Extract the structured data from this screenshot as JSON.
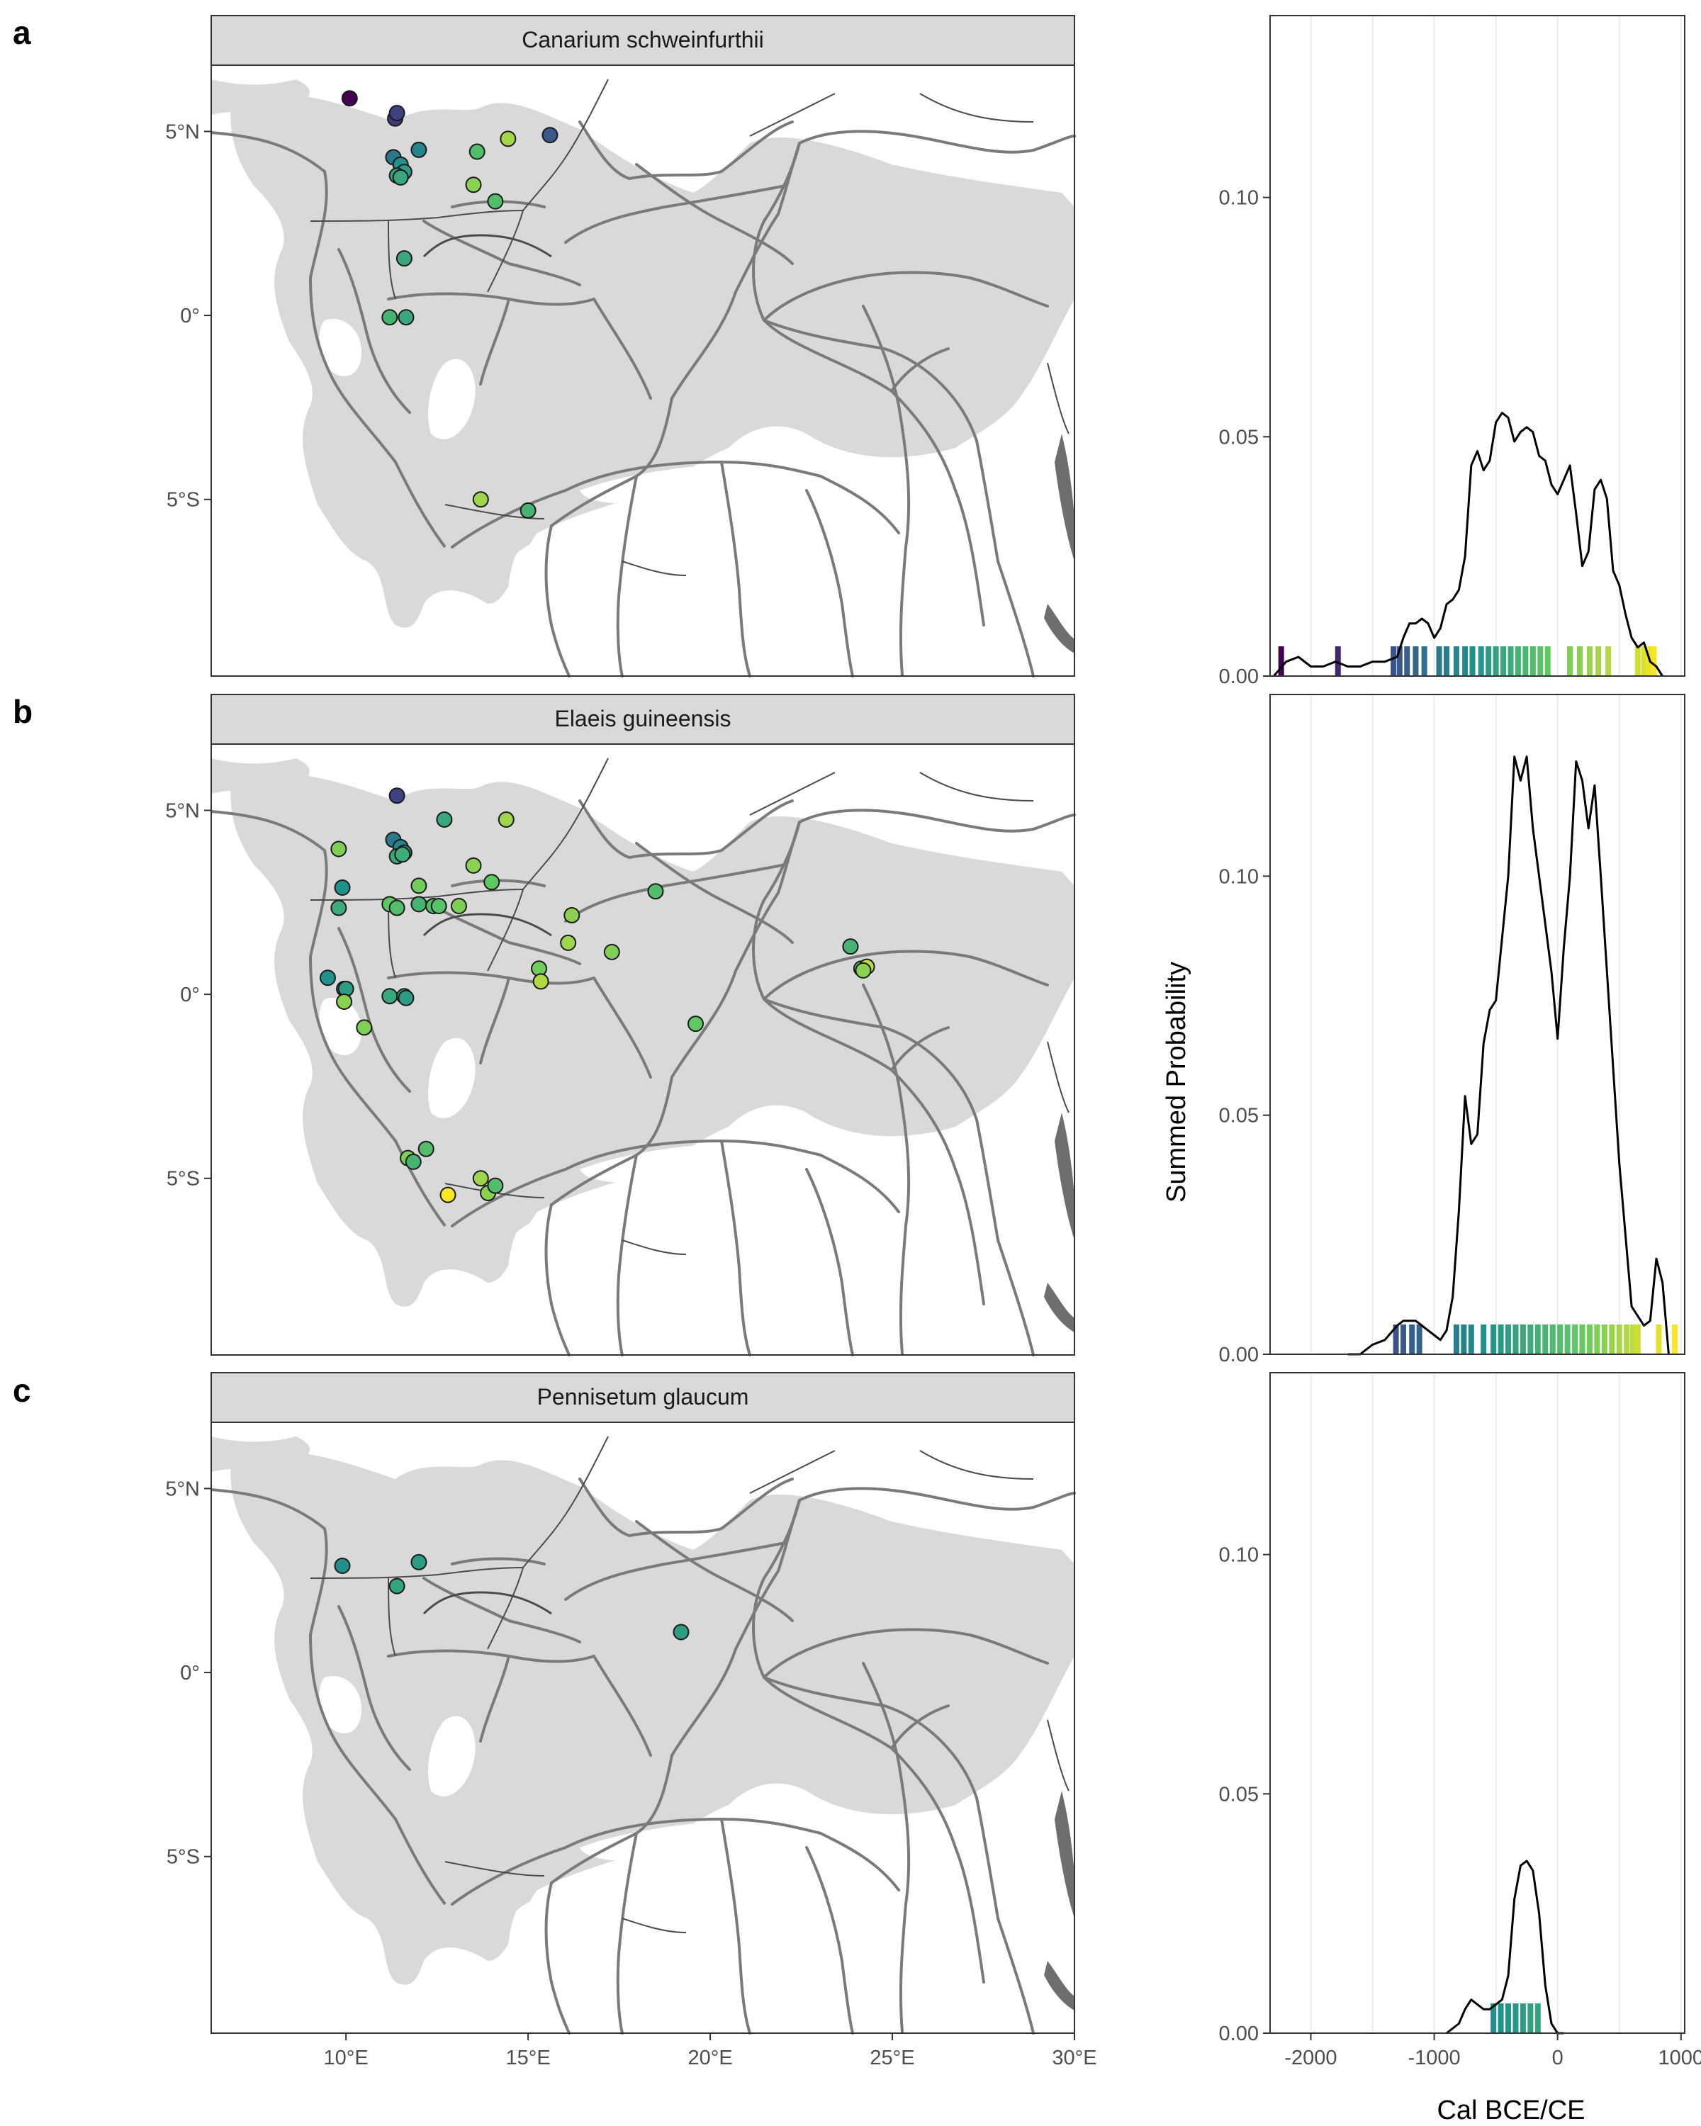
{
  "figure": {
    "colors": {
      "land_shade": "#d9d9d9",
      "river": "#7a7a7a",
      "border": "#4a4a4a",
      "strip_fill": "#d9d9d9",
      "density_line": "#000000",
      "viridis": [
        "#440154",
        "#3b528b",
        "#21918c",
        "#5ec962",
        "#fde725"
      ]
    },
    "panels": [
      {
        "letter": "a",
        "species": "Canarium schweinfurthii",
        "sites": [
          {
            "lon": 10.1,
            "lat": 5.9,
            "c": 0.0
          },
          {
            "lon": 11.35,
            "lat": 5.35,
            "c": 0.18
          },
          {
            "lon": 11.4,
            "lat": 5.5,
            "c": 0.2
          },
          {
            "lon": 15.6,
            "lat": 4.9,
            "c": 0.27
          },
          {
            "lon": 12.0,
            "lat": 4.5,
            "c": 0.45
          },
          {
            "lon": 11.3,
            "lat": 4.3,
            "c": 0.4
          },
          {
            "lon": 11.5,
            "lat": 4.1,
            "c": 0.5
          },
          {
            "lon": 11.6,
            "lat": 3.9,
            "c": 0.55
          },
          {
            "lon": 11.4,
            "lat": 3.8,
            "c": 0.58
          },
          {
            "lon": 11.5,
            "lat": 3.75,
            "c": 0.6
          },
          {
            "lon": 13.6,
            "lat": 4.45,
            "c": 0.7
          },
          {
            "lon": 14.45,
            "lat": 4.8,
            "c": 0.86
          },
          {
            "lon": 13.5,
            "lat": 3.55,
            "c": 0.82
          },
          {
            "lon": 14.1,
            "lat": 3.1,
            "c": 0.7
          },
          {
            "lon": 11.6,
            "lat": 1.55,
            "c": 0.6
          },
          {
            "lon": 11.2,
            "lat": -0.05,
            "c": 0.65
          },
          {
            "lon": 11.65,
            "lat": -0.05,
            "c": 0.6
          },
          {
            "lon": 13.7,
            "lat": -5.0,
            "c": 0.85
          },
          {
            "lon": 15.0,
            "lat": -5.3,
            "c": 0.65
          }
        ],
        "density": {
          "x": [
            -2300,
            -2200,
            -2100,
            -2000,
            -1900,
            -1800,
            -1700,
            -1600,
            -1500,
            -1400,
            -1300,
            -1250,
            -1200,
            -1150,
            -1100,
            -1050,
            -1000,
            -950,
            -900,
            -850,
            -800,
            -750,
            -700,
            -650,
            -600,
            -550,
            -500,
            -450,
            -400,
            -350,
            -300,
            -250,
            -200,
            -150,
            -100,
            -50,
            0,
            50,
            100,
            150,
            200,
            250,
            300,
            350,
            400,
            450,
            500,
            550,
            600,
            650,
            700,
            750,
            800,
            850
          ],
          "y": [
            0.0,
            0.003,
            0.004,
            0.002,
            0.002,
            0.003,
            0.002,
            0.002,
            0.003,
            0.003,
            0.004,
            0.008,
            0.011,
            0.011,
            0.012,
            0.011,
            0.008,
            0.01,
            0.015,
            0.016,
            0.018,
            0.025,
            0.044,
            0.047,
            0.043,
            0.045,
            0.053,
            0.055,
            0.054,
            0.049,
            0.051,
            0.052,
            0.051,
            0.046,
            0.045,
            0.04,
            0.038,
            0.041,
            0.044,
            0.034,
            0.023,
            0.026,
            0.039,
            0.041,
            0.037,
            0.022,
            0.019,
            0.013,
            0.008,
            0.006,
            0.007,
            0.003,
            0.002,
            0.0
          ]
        },
        "rug": [
          {
            "x": -2240,
            "c": 0.0
          },
          {
            "x": -1780,
            "c": 0.12
          },
          {
            "x": -1330,
            "c": 0.25
          },
          {
            "x": -1280,
            "c": 0.28
          },
          {
            "x": -1220,
            "c": 0.3
          },
          {
            "x": -1150,
            "c": 0.33
          },
          {
            "x": -1080,
            "c": 0.36
          },
          {
            "x": -960,
            "c": 0.4
          },
          {
            "x": -900,
            "c": 0.42
          },
          {
            "x": -820,
            "c": 0.45
          },
          {
            "x": -750,
            "c": 0.47
          },
          {
            "x": -690,
            "c": 0.5
          },
          {
            "x": -620,
            "c": 0.52
          },
          {
            "x": -560,
            "c": 0.55
          },
          {
            "x": -500,
            "c": 0.57
          },
          {
            "x": -440,
            "c": 0.6
          },
          {
            "x": -380,
            "c": 0.62
          },
          {
            "x": -320,
            "c": 0.65
          },
          {
            "x": -260,
            "c": 0.67
          },
          {
            "x": -200,
            "c": 0.7
          },
          {
            "x": -140,
            "c": 0.73
          },
          {
            "x": -80,
            "c": 0.75
          },
          {
            "x": 100,
            "c": 0.8
          },
          {
            "x": 180,
            "c": 0.82
          },
          {
            "x": 260,
            "c": 0.84
          },
          {
            "x": 330,
            "c": 0.86
          },
          {
            "x": 410,
            "c": 0.88
          },
          {
            "x": 650,
            "c": 0.93
          },
          {
            "x": 700,
            "c": 0.95
          },
          {
            "x": 740,
            "c": 0.97
          },
          {
            "x": 780,
            "c": 0.99
          }
        ]
      },
      {
        "letter": "b",
        "species": "Elaeis guineensis",
        "sites": [
          {
            "lon": 11.4,
            "lat": 5.4,
            "c": 0.2
          },
          {
            "lon": 11.3,
            "lat": 4.2,
            "c": 0.4
          },
          {
            "lon": 11.5,
            "lat": 4.0,
            "c": 0.45
          },
          {
            "lon": 11.6,
            "lat": 3.85,
            "c": 0.55
          },
          {
            "lon": 11.4,
            "lat": 3.75,
            "c": 0.6
          },
          {
            "lon": 11.55,
            "lat": 3.8,
            "c": 0.62
          },
          {
            "lon": 12.7,
            "lat": 4.75,
            "c": 0.6
          },
          {
            "lon": 14.4,
            "lat": 4.75,
            "c": 0.85
          },
          {
            "lon": 9.8,
            "lat": 3.95,
            "c": 0.8
          },
          {
            "lon": 9.9,
            "lat": 2.9,
            "c": 0.5
          },
          {
            "lon": 9.8,
            "lat": 2.35,
            "c": 0.62
          },
          {
            "lon": 11.2,
            "lat": 2.45,
            "c": 0.75
          },
          {
            "lon": 11.4,
            "lat": 2.35,
            "c": 0.7
          },
          {
            "lon": 12.0,
            "lat": 2.95,
            "c": 0.78
          },
          {
            "lon": 12.0,
            "lat": 2.45,
            "c": 0.65
          },
          {
            "lon": 12.4,
            "lat": 2.4,
            "c": 0.7
          },
          {
            "lon": 12.55,
            "lat": 2.4,
            "c": 0.72
          },
          {
            "lon": 13.1,
            "lat": 2.4,
            "c": 0.8
          },
          {
            "lon": 13.5,
            "lat": 3.5,
            "c": 0.82
          },
          {
            "lon": 14.0,
            "lat": 3.05,
            "c": 0.75
          },
          {
            "lon": 16.2,
            "lat": 2.15,
            "c": 0.82
          },
          {
            "lon": 16.1,
            "lat": 1.4,
            "c": 0.85
          },
          {
            "lon": 17.3,
            "lat": 1.15,
            "c": 0.8
          },
          {
            "lon": 18.5,
            "lat": 2.8,
            "c": 0.7
          },
          {
            "lon": 15.3,
            "lat": 0.7,
            "c": 0.78
          },
          {
            "lon": 15.35,
            "lat": 0.35,
            "c": 0.88
          },
          {
            "lon": 9.5,
            "lat": 0.45,
            "c": 0.5
          },
          {
            "lon": 9.95,
            "lat": 0.15,
            "c": 0.45
          },
          {
            "lon": 10.0,
            "lat": 0.15,
            "c": 0.55
          },
          {
            "lon": 9.95,
            "lat": -0.2,
            "c": 0.82
          },
          {
            "lon": 10.5,
            "lat": -0.9,
            "c": 0.8
          },
          {
            "lon": 11.2,
            "lat": -0.05,
            "c": 0.6
          },
          {
            "lon": 11.6,
            "lat": -0.05,
            "c": 0.58
          },
          {
            "lon": 11.65,
            "lat": -0.1,
            "c": 0.55
          },
          {
            "lon": 19.6,
            "lat": -0.8,
            "c": 0.75
          },
          {
            "lon": 23.85,
            "lat": 1.3,
            "c": 0.65
          },
          {
            "lon": 24.15,
            "lat": 0.7,
            "c": 0.72
          },
          {
            "lon": 24.3,
            "lat": 0.75,
            "c": 0.9
          },
          {
            "lon": 24.2,
            "lat": 0.65,
            "c": 0.82
          },
          {
            "lon": 11.7,
            "lat": -4.45,
            "c": 0.8
          },
          {
            "lon": 11.85,
            "lat": -4.55,
            "c": 0.65
          },
          {
            "lon": 12.2,
            "lat": -4.2,
            "c": 0.7
          },
          {
            "lon": 13.7,
            "lat": -5.0,
            "c": 0.85
          },
          {
            "lon": 13.9,
            "lat": -5.4,
            "c": 0.82
          },
          {
            "lon": 14.1,
            "lat": -5.2,
            "c": 0.7
          },
          {
            "lon": 12.8,
            "lat": -5.45,
            "c": 1.0
          }
        ],
        "density": {
          "x": [
            -1700,
            -1600,
            -1500,
            -1400,
            -1300,
            -1250,
            -1200,
            -1150,
            -1100,
            -1050,
            -1000,
            -950,
            -900,
            -850,
            -800,
            -750,
            -700,
            -650,
            -600,
            -550,
            -500,
            -450,
            -400,
            -350,
            -300,
            -250,
            -200,
            -150,
            -100,
            -50,
            0,
            50,
            100,
            150,
            200,
            250,
            300,
            350,
            400,
            450,
            500,
            550,
            600,
            650,
            700,
            750,
            800,
            850,
            900
          ],
          "y": [
            0.0,
            0.0,
            0.002,
            0.003,
            0.006,
            0.007,
            0.007,
            0.007,
            0.006,
            0.005,
            0.004,
            0.003,
            0.005,
            0.012,
            0.03,
            0.054,
            0.044,
            0.046,
            0.065,
            0.072,
            0.074,
            0.087,
            0.1,
            0.125,
            0.12,
            0.125,
            0.11,
            0.1,
            0.09,
            0.08,
            0.066,
            0.085,
            0.1,
            0.124,
            0.12,
            0.11,
            0.119,
            0.1,
            0.08,
            0.06,
            0.04,
            0.025,
            0.01,
            0.008,
            0.006,
            0.007,
            0.02,
            0.015,
            0.0
          ]
        },
        "rug": [
          {
            "x": -1310,
            "c": 0.25
          },
          {
            "x": -1250,
            "c": 0.28
          },
          {
            "x": -1180,
            "c": 0.3
          },
          {
            "x": -1120,
            "c": 0.32
          },
          {
            "x": -820,
            "c": 0.42
          },
          {
            "x": -760,
            "c": 0.45
          },
          {
            "x": -700,
            "c": 0.47
          },
          {
            "x": -600,
            "c": 0.5
          },
          {
            "x": -520,
            "c": 0.52
          },
          {
            "x": -460,
            "c": 0.54
          },
          {
            "x": -400,
            "c": 0.56
          },
          {
            "x": -340,
            "c": 0.58
          },
          {
            "x": -280,
            "c": 0.6
          },
          {
            "x": -220,
            "c": 0.62
          },
          {
            "x": -160,
            "c": 0.64
          },
          {
            "x": -100,
            "c": 0.66
          },
          {
            "x": -40,
            "c": 0.68
          },
          {
            "x": 20,
            "c": 0.7
          },
          {
            "x": 80,
            "c": 0.72
          },
          {
            "x": 140,
            "c": 0.74
          },
          {
            "x": 200,
            "c": 0.76
          },
          {
            "x": 260,
            "c": 0.78
          },
          {
            "x": 320,
            "c": 0.8
          },
          {
            "x": 380,
            "c": 0.82
          },
          {
            "x": 440,
            "c": 0.84
          },
          {
            "x": 500,
            "c": 0.86
          },
          {
            "x": 560,
            "c": 0.88
          },
          {
            "x": 610,
            "c": 0.9
          },
          {
            "x": 650,
            "c": 0.92
          },
          {
            "x": 820,
            "c": 0.96
          },
          {
            "x": 950,
            "c": 1.0
          }
        ]
      },
      {
        "letter": "c",
        "species": "Pennisetum glaucum",
        "sites": [
          {
            "lon": 9.9,
            "lat": 2.9,
            "c": 0.5
          },
          {
            "lon": 12.0,
            "lat": 3.0,
            "c": 0.55
          },
          {
            "lon": 11.4,
            "lat": 2.35,
            "c": 0.58
          },
          {
            "lon": 19.2,
            "lat": 1.1,
            "c": 0.55
          }
        ],
        "density": {
          "x": [
            -900,
            -800,
            -750,
            -700,
            -650,
            -600,
            -550,
            -500,
            -450,
            -400,
            -350,
            -300,
            -250,
            -200,
            -150,
            -100,
            -50,
            0,
            50
          ],
          "y": [
            0.0,
            0.002,
            0.005,
            0.007,
            0.006,
            0.005,
            0.005,
            0.006,
            0.007,
            0.012,
            0.028,
            0.035,
            0.036,
            0.034,
            0.025,
            0.01,
            0.002,
            0.0,
            0.0
          ]
        },
        "rug": [
          {
            "x": -520,
            "c": 0.48
          },
          {
            "x": -460,
            "c": 0.5
          },
          {
            "x": -400,
            "c": 0.52
          },
          {
            "x": -340,
            "c": 0.53
          },
          {
            "x": -280,
            "c": 0.55
          },
          {
            "x": -220,
            "c": 0.57
          },
          {
            "x": -160,
            "c": 0.58
          }
        ]
      }
    ],
    "map_axis": {
      "x_ticks": [
        {
          "value": 10,
          "label": "10°E"
        },
        {
          "value": 15,
          "label": "15°E"
        },
        {
          "value": 20,
          "label": "20°E"
        },
        {
          "value": 25,
          "label": "25°E"
        },
        {
          "value": 30,
          "label": "30°E"
        }
      ],
      "y_ticks": [
        {
          "value": 5,
          "label": "5°N"
        },
        {
          "value": 0,
          "label": "0°"
        },
        {
          "value": -5,
          "label": "5°S"
        }
      ],
      "lon_range": [
        6.3,
        30.0
      ],
      "lat_range": [
        -9.8,
        6.8
      ]
    },
    "density_axis": {
      "x_ticks": [
        {
          "value": -2000,
          "label": "-2000"
        },
        {
          "value": -1000,
          "label": "-1000"
        },
        {
          "value": 0,
          "label": "0"
        },
        {
          "value": 1000,
          "label": "1000"
        }
      ],
      "x_grid": [
        -2500,
        -2000,
        -1500,
        -1000,
        -500,
        0,
        500,
        1000
      ],
      "y_ticks": [
        {
          "value": 0.0,
          "label": "0.00"
        },
        {
          "value": 0.05,
          "label": "0.05"
        },
        {
          "value": 0.1,
          "label": "0.10"
        }
      ],
      "xlim": [
        -2330,
        1030
      ],
      "ylim": [
        0,
        0.138
      ],
      "xlabel": "Cal BCE/CE",
      "ylabel": "Summed Probability"
    }
  }
}
